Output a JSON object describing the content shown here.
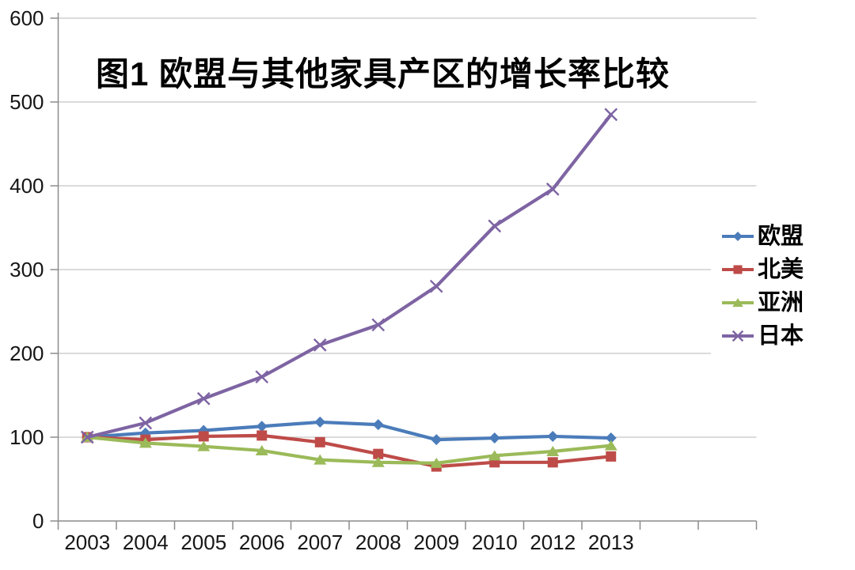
{
  "chart_data": {
    "type": "line",
    "title": "图1 欧盟与其他家具产区的增长率比较",
    "categories": [
      "2003",
      "2004",
      "2005",
      "2006",
      "2007",
      "2008",
      "2009",
      "2010",
      "2012",
      "2013"
    ],
    "series": [
      {
        "name": "欧盟",
        "marker": "diamond",
        "color": "#4B7CBA",
        "values": [
          100,
          105,
          108,
          113,
          118,
          115,
          97,
          99,
          101,
          99
        ]
      },
      {
        "name": "北美",
        "marker": "square",
        "color": "#BE4B48",
        "values": [
          100,
          97,
          101,
          102,
          94,
          80,
          65,
          70,
          70,
          77
        ]
      },
      {
        "name": "亚洲",
        "marker": "triangle",
        "color": "#9BBA59",
        "values": [
          100,
          93,
          89,
          84,
          73,
          70,
          69,
          78,
          83,
          90
        ]
      },
      {
        "name": "日本",
        "marker": "x",
        "color": "#7E64A3",
        "values": [
          100,
          117,
          146,
          172,
          210,
          234,
          280,
          352,
          396,
          485
        ]
      }
    ],
    "ylim": [
      0,
      600
    ],
    "ytick_step": 100,
    "yticks": [
      "0",
      "100",
      "200",
      "300",
      "400",
      "500",
      "600"
    ],
    "xlabel": "",
    "ylabel": "",
    "grid": true,
    "legend_position": "right",
    "trailing_empty_slots": 2
  },
  "style": {
    "axis_color": "#8C8C8C",
    "grid_color": "#C5C5C5",
    "tick_color": "#8C8C8C",
    "text_color": "#161616",
    "background": "#FFFFFF"
  }
}
